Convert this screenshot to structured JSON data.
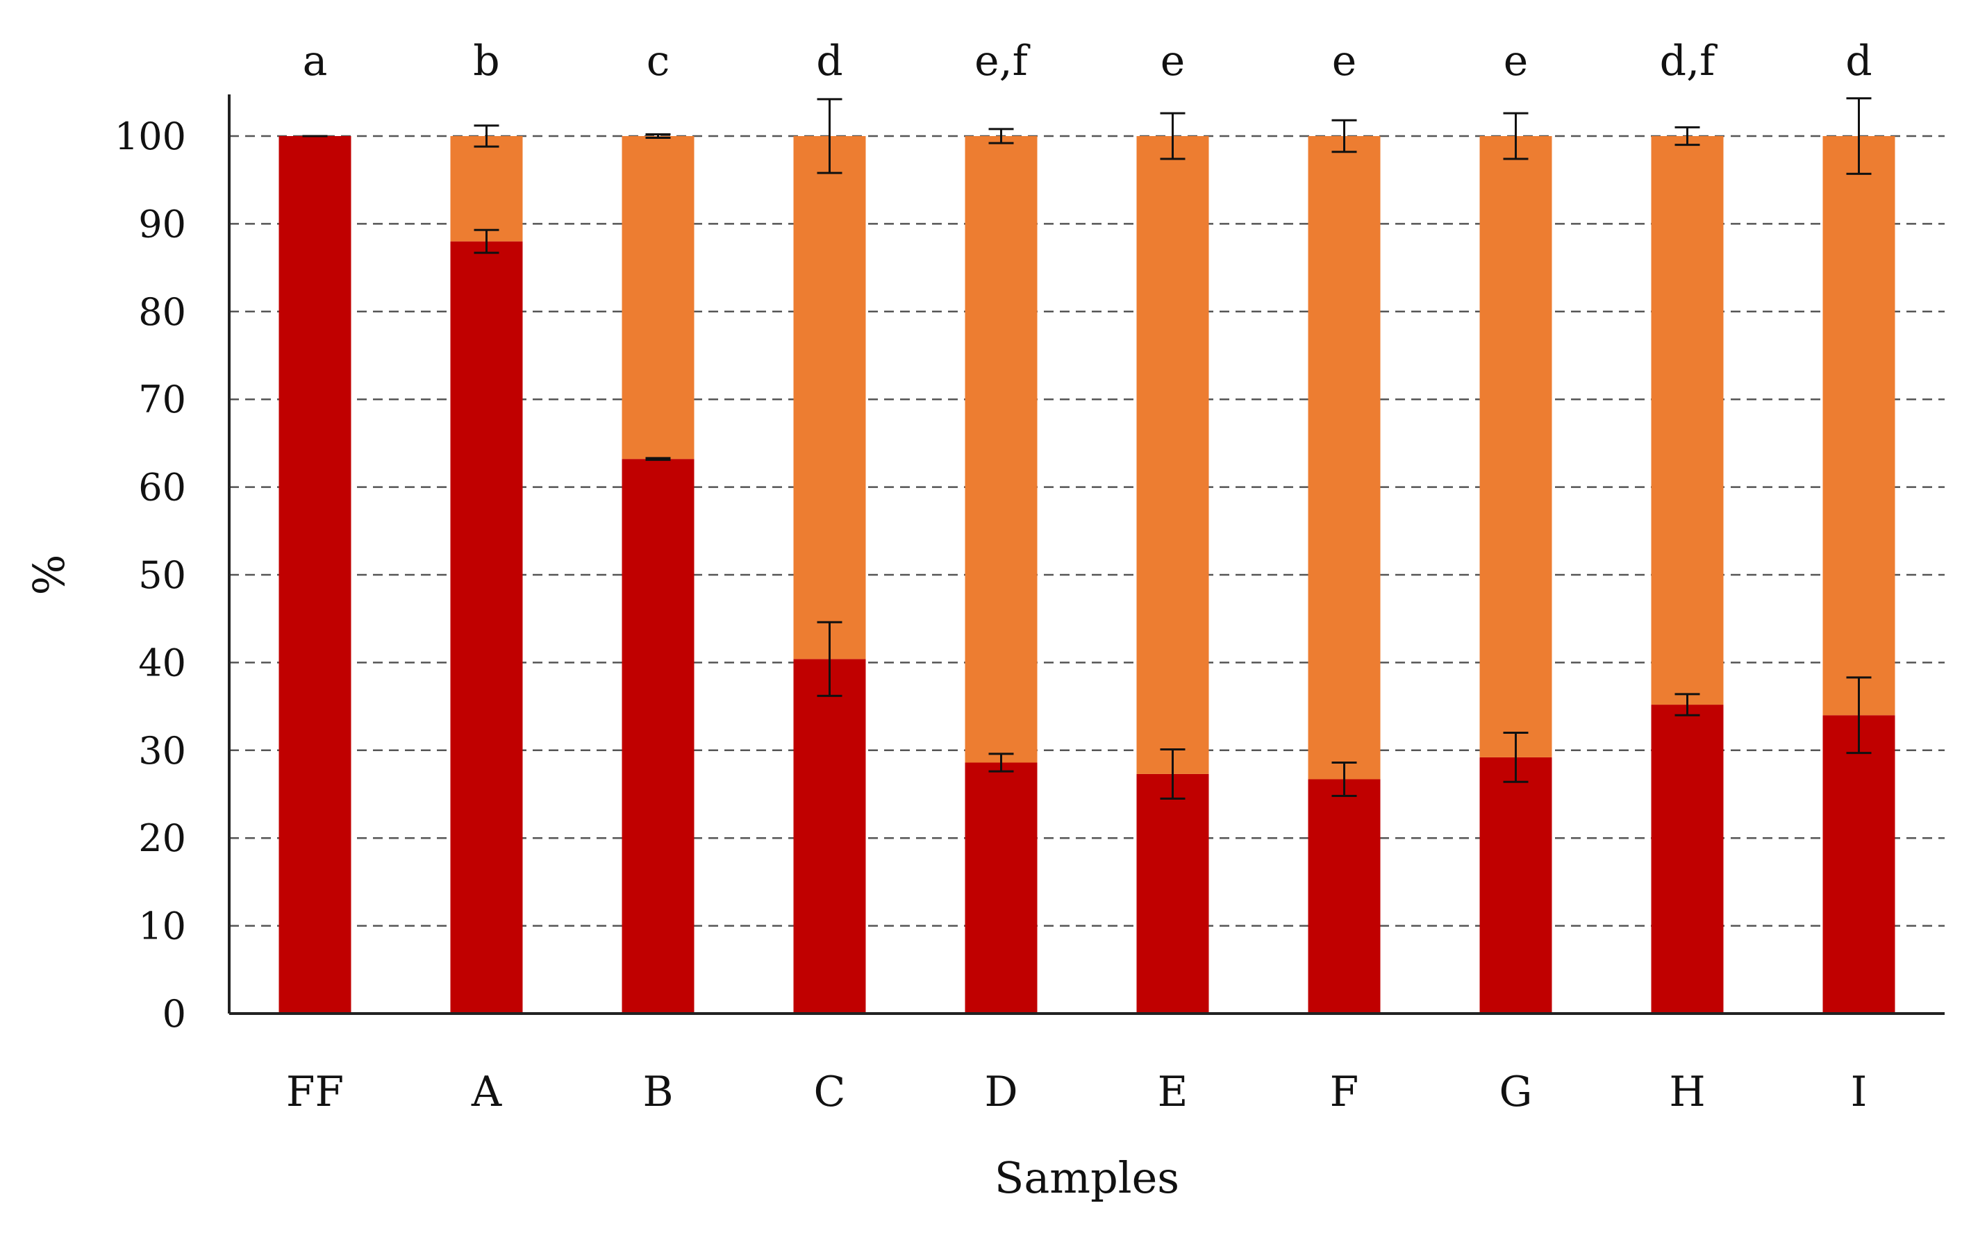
{
  "chart_data": {
    "type": "bar",
    "stacked": true,
    "title": "",
    "xlabel": "Samples",
    "ylabel": "%",
    "ylim": [
      0,
      100
    ],
    "yticks": [
      0,
      10,
      20,
      30,
      40,
      50,
      60,
      70,
      80,
      90,
      100
    ],
    "grid": "horizontal-dashed",
    "legend": "none",
    "categories": [
      "FF",
      "A",
      "B",
      "C",
      "D",
      "E",
      "F",
      "G",
      "H",
      "I"
    ],
    "significance_letters": [
      "a",
      "b",
      "c",
      "d",
      "e,f",
      "e",
      "e",
      "e",
      "d,f",
      "d"
    ],
    "series": [
      {
        "color": "#C00000",
        "values": [
          100,
          88,
          63.2,
          40.4,
          28.6,
          27.3,
          26.7,
          29.2,
          35.2,
          34.0
        ],
        "errors": [
          0,
          1.3,
          0.1,
          4.2,
          1.0,
          2.8,
          1.9,
          2.8,
          1.2,
          4.3
        ]
      },
      {
        "color": "#ED7D31",
        "values": [
          0,
          12,
          36.8,
          59.6,
          71.4,
          72.7,
          73.3,
          70.8,
          64.8,
          66.0
        ],
        "errors": [
          0,
          1.2,
          0.2,
          4.2,
          0.8,
          2.6,
          1.8,
          2.6,
          1.0,
          4.3
        ]
      }
    ]
  }
}
